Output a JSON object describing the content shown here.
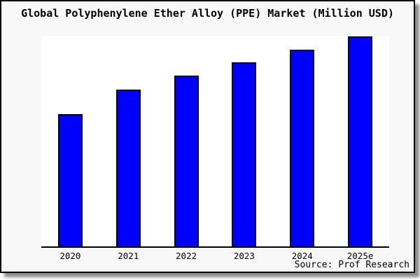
{
  "page": {
    "title": "Global Polyphenylene Ether Alloy (PPE) Market (Million USD)",
    "source": "Source: Prof Research"
  },
  "colors": {
    "bar_fill": "#0000ff",
    "bar_border": "#000000",
    "page_background": "#f8f8f8",
    "plot_background": "#ffffff",
    "frame_border": "#000000",
    "text": "#000000"
  },
  "chart_data": {
    "type": "bar",
    "title": "Global Polyphenylene Ether Alloy (PPE) Market (Million USD)",
    "categories": [
      "2020",
      "2021",
      "2022",
      "2023",
      "2024",
      "2025e"
    ],
    "values": [
      189,
      224,
      244,
      263,
      281,
      300
    ],
    "value_note": "no y-axis or data labels shown; values are relative bar heights read from pixels",
    "xlabel": "",
    "ylabel": "",
    "ylim": [
      0,
      300
    ],
    "grid": false,
    "legend": false,
    "bar_color": "#0000ff",
    "source": "Source: Prof Research"
  }
}
